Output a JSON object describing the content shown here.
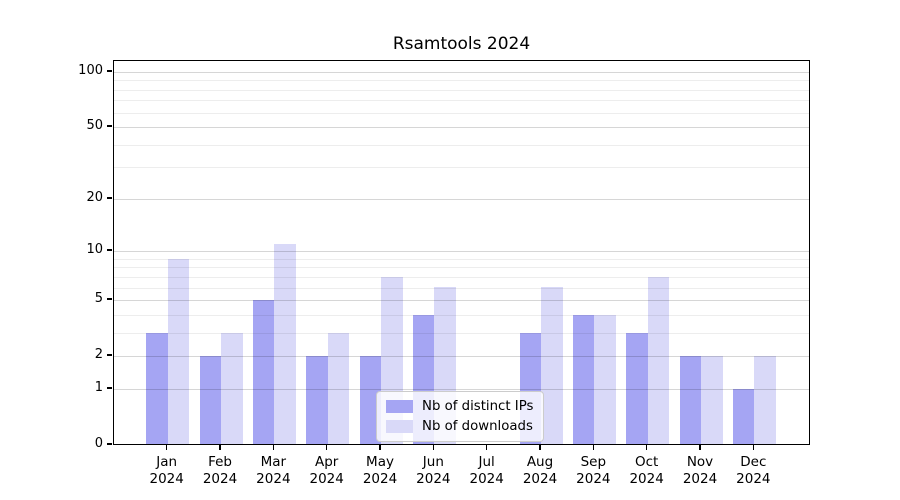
{
  "title": "Rsamtools 2024",
  "chart_data": {
    "type": "bar",
    "title": "Rsamtools 2024",
    "categories": [
      "Jan 2024",
      "Feb 2024",
      "Mar 2024",
      "Apr 2024",
      "May 2024",
      "Jun 2024",
      "Jul 2024",
      "Aug 2024",
      "Sep 2024",
      "Oct 2024",
      "Nov 2024",
      "Dec 2024"
    ],
    "series": [
      {
        "name": "Nb of distinct IPs",
        "color": "#a5a5f3",
        "values": [
          3,
          2,
          5,
          2,
          2,
          4,
          0,
          3,
          4,
          3,
          2,
          1
        ]
      },
      {
        "name": "Nb of downloads",
        "color": "#d9d9f8",
        "values": [
          9,
          3,
          11,
          3,
          7,
          6,
          0,
          6,
          4,
          7,
          2,
          2
        ]
      }
    ],
    "xlabel": "",
    "ylabel": "",
    "yscale": "log1p",
    "ylim": [
      0,
      100
    ],
    "y_major_ticks": [
      0,
      1,
      2,
      5,
      10,
      20,
      50,
      100
    ],
    "y_minor_gridlines": [
      3,
      4,
      6,
      7,
      8,
      9,
      30,
      40,
      60,
      70,
      80,
      90
    ],
    "grid": true,
    "legend_position": "lower center"
  },
  "colors": {
    "background": "#ffffff",
    "spine": "#000000",
    "major_grid": "rgba(0,0,0,0.16)",
    "minor_grid": "rgba(0,0,0,0.07)",
    "legend_border": "#cccccc",
    "legend_background": "rgba(255,255,255,0.8)"
  }
}
